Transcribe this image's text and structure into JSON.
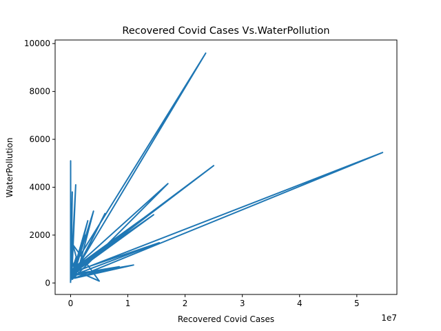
{
  "chart_data": {
    "type": "line",
    "title": "Recovered Covid Cases Vs.WaterPollution",
    "xlabel": "Recovered Covid Cases",
    "ylabel": "WaterPollution",
    "x_offset_label": "1e7",
    "xlim": [
      -2700000,
      57000000
    ],
    "ylim": [
      -480,
      10150
    ],
    "x_ticks": [
      0,
      10000000,
      20000000,
      30000000,
      40000000,
      50000000
    ],
    "x_tick_labels": [
      "0",
      "1",
      "2",
      "3",
      "4",
      "5"
    ],
    "y_ticks": [
      0,
      2000,
      4000,
      6000,
      8000,
      10000
    ],
    "y_tick_labels": [
      "0",
      "2000",
      "4000",
      "6000",
      "8000",
      "10000"
    ],
    "grid": false,
    "line_color": "#1f77b4",
    "series": [
      {
        "x": [
          0,
          12000,
          30000,
          5000,
          60000,
          20000,
          80000,
          150000,
          40000,
          300000,
          100000,
          900000,
          200000,
          1500000,
          50000,
          5000000,
          400000,
          1200000,
          600000,
          2500000,
          300000,
          23600000,
          500000,
          1000000,
          200000,
          3000000,
          800000,
          25000000,
          1500000,
          4000000,
          300000,
          17000000,
          500000,
          15000000,
          100000,
          54500000,
          700000,
          11000000,
          200000,
          15500000,
          900000,
          6000000,
          400000,
          8500000,
          150000,
          14500000,
          1000000,
          2000000,
          300000
        ],
        "y": [
          0,
          5100,
          150,
          4400,
          600,
          2100,
          300,
          1800,
          100,
          3800,
          500,
          4100,
          200,
          1200,
          600,
          80,
          1600,
          900,
          400,
          2000,
          300,
          9600,
          700,
          1100,
          250,
          2600,
          500,
          4900,
          700,
          3000,
          150,
          4150,
          600,
          3100,
          400,
          5450,
          200,
          750,
          300,
          1680,
          500,
          2900,
          200,
          680,
          350,
          2850,
          600,
          800,
          150
        ]
      }
    ]
  }
}
